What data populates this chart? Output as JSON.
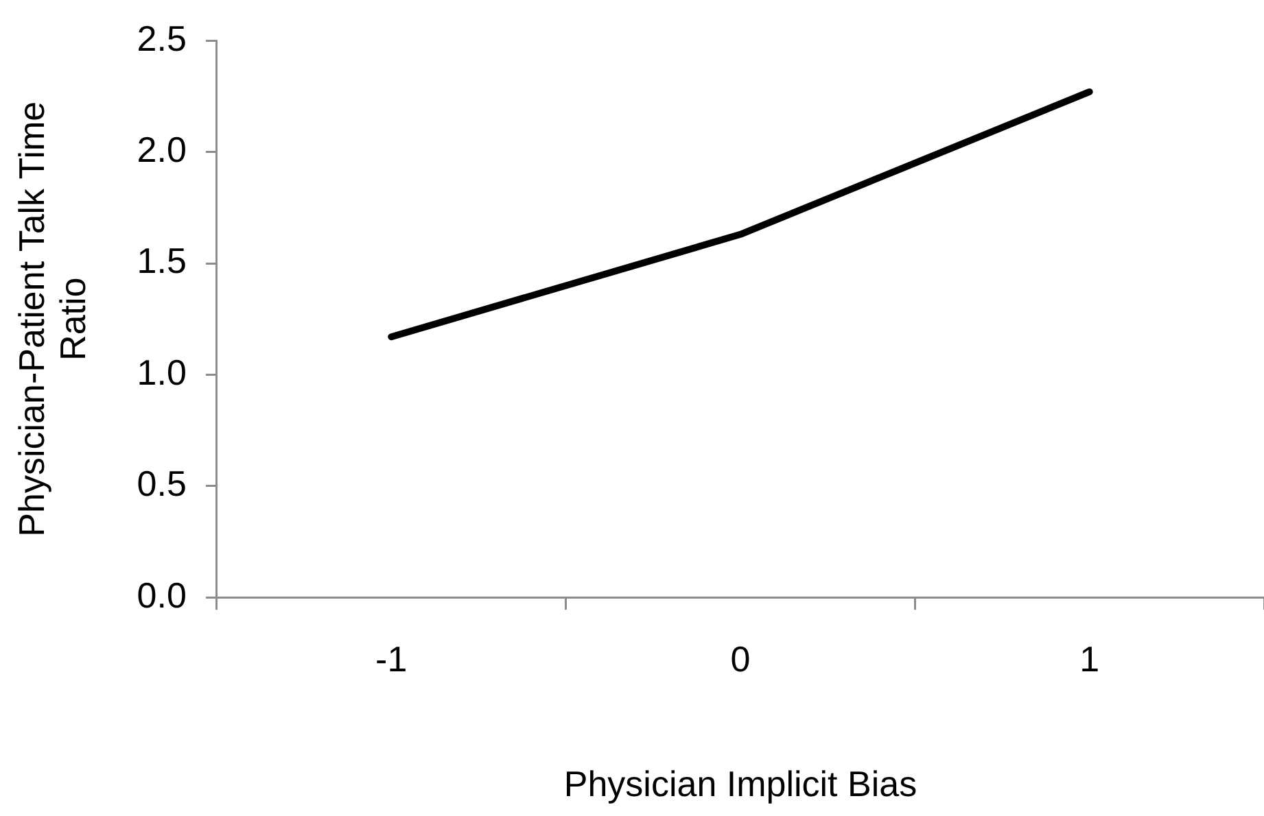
{
  "chart_data": {
    "type": "line",
    "xlabel": "Physician Implicit Bias",
    "ylabel": "Physician-Patient Talk Time Ratio",
    "categories": [
      "-1",
      "0",
      "1"
    ],
    "series": [
      {
        "color": "#000000",
        "values": [
          1.17,
          1.63,
          2.27
        ]
      }
    ],
    "ylim": [
      0,
      2.5
    ],
    "yticks": [
      {
        "value": 0,
        "label": "0.0"
      },
      {
        "value": 0.5,
        "label": "0.5"
      },
      {
        "value": 1,
        "label": "1.0"
      },
      {
        "value": 1.5,
        "label": "1.5"
      },
      {
        "value": 2,
        "label": "2.0"
      },
      {
        "value": 2.5,
        "label": "2.5"
      }
    ],
    "grid": false,
    "legend": false,
    "marker": "none",
    "line_style": "solid"
  }
}
